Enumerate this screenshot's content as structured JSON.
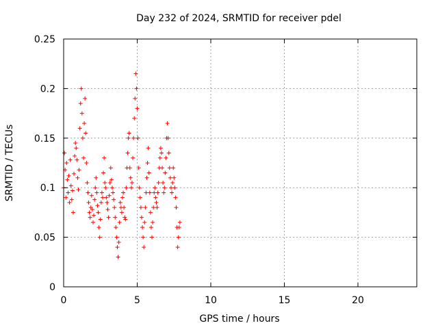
{
  "chart_data": {
    "type": "scatter",
    "title": "Day 232 of 2024, SRMTID for receiver pdel",
    "xlabel": "GPS time / hours",
    "ylabel": "SRMTID / TECUs",
    "xlim": [
      0,
      24
    ],
    "ylim": [
      0,
      0.25
    ],
    "xticks": [
      0,
      5,
      10,
      15,
      20
    ],
    "xtick_labels": [
      "0",
      "5",
      "10",
      "15",
      "20"
    ],
    "yticks": [
      0,
      0.05,
      0.1,
      0.15,
      0.2,
      0.25
    ],
    "ytick_labels": [
      "0",
      "0.05",
      "0.1",
      "0.15",
      "0.2",
      "0.25"
    ],
    "grid": true,
    "legend": "none",
    "marker": "plus",
    "color": "#ff0000",
    "series": [
      {
        "x": [
          0.0,
          0.05,
          0.1,
          0.15,
          0.2,
          0.25,
          0.3,
          0.35,
          0.4,
          0.45,
          0.5,
          0.55,
          0.6,
          0.65,
          0.7,
          0.75,
          0.8,
          0.85,
          0.9,
          0.95,
          1.0,
          1.05,
          1.1,
          1.15,
          1.2,
          1.25,
          1.3,
          1.35,
          1.4,
          1.45,
          1.5,
          1.55,
          1.6,
          1.65,
          1.7,
          1.75,
          1.8,
          1.85,
          1.9,
          1.95,
          2.0,
          2.05,
          2.1,
          2.15,
          2.2,
          2.25,
          2.3,
          2.35,
          2.4,
          2.45,
          2.5,
          2.55,
          2.6,
          2.65,
          2.7,
          2.75,
          2.8,
          2.85,
          2.9,
          2.95,
          3.0,
          3.05,
          3.1,
          3.15,
          3.2,
          3.25,
          3.3,
          3.35,
          3.4,
          3.45,
          3.5,
          3.55,
          3.6,
          3.65,
          3.7,
          3.75,
          3.8,
          3.85,
          3.9,
          3.95,
          4.0,
          4.05,
          4.1,
          4.15,
          4.2,
          4.25,
          4.3,
          4.35,
          4.4,
          4.45,
          4.5,
          4.55,
          4.6,
          4.65,
          4.7,
          4.75,
          4.8,
          4.85,
          4.9,
          4.95,
          5.0,
          5.05,
          5.1,
          5.15,
          5.2,
          5.25,
          5.3,
          5.35,
          5.4,
          5.45,
          5.5,
          5.55,
          5.6,
          5.65,
          5.7,
          5.75,
          5.8,
          5.85,
          5.9,
          5.95,
          6.0,
          6.05,
          6.1,
          6.15,
          6.2,
          6.25,
          6.3,
          6.35,
          6.4,
          6.45,
          6.5,
          6.55,
          6.6,
          6.65,
          6.7,
          6.75,
          6.8,
          6.85,
          6.9,
          6.95,
          7.0,
          7.05,
          7.1,
          7.15,
          7.2,
          7.25,
          7.3,
          7.35,
          7.4,
          7.45,
          7.5,
          7.55,
          7.6,
          7.65,
          7.7,
          7.75,
          7.8,
          7.85,
          7.9
        ],
        "y": [
          0.1,
          0.135,
          0.118,
          0.09,
          0.125,
          0.108,
          0.095,
          0.112,
          0.085,
          0.128,
          0.102,
          0.088,
          0.097,
          0.075,
          0.114,
          0.132,
          0.145,
          0.14,
          0.128,
          0.11,
          0.098,
          0.118,
          0.16,
          0.185,
          0.2,
          0.175,
          0.15,
          0.13,
          0.165,
          0.19,
          0.155,
          0.125,
          0.105,
          0.095,
          0.085,
          0.075,
          0.07,
          0.08,
          0.092,
          0.078,
          0.065,
          0.072,
          0.088,
          0.1,
          0.11,
          0.095,
          0.082,
          0.075,
          0.06,
          0.05,
          0.068,
          0.085,
          0.095,
          0.09,
          0.115,
          0.13,
          0.105,
          0.1,
          0.09,
          0.085,
          0.078,
          0.07,
          0.092,
          0.105,
          0.12,
          0.108,
          0.1,
          0.095,
          0.088,
          0.08,
          0.07,
          0.06,
          0.05,
          0.04,
          0.03,
          0.045,
          0.065,
          0.085,
          0.08,
          0.075,
          0.09,
          0.095,
          0.08,
          0.07,
          0.068,
          0.1,
          0.12,
          0.135,
          0.15,
          0.155,
          0.12,
          0.11,
          0.1,
          0.105,
          0.13,
          0.15,
          0.17,
          0.19,
          0.215,
          0.2,
          0.18,
          0.15,
          0.12,
          0.1,
          0.09,
          0.08,
          0.07,
          0.06,
          0.05,
          0.04,
          0.065,
          0.08,
          0.095,
          0.11,
          0.125,
          0.14,
          0.115,
          0.095,
          0.075,
          0.06,
          0.05,
          0.065,
          0.08,
          0.095,
          0.1,
          0.09,
          0.085,
          0.08,
          0.095,
          0.105,
          0.12,
          0.13,
          0.14,
          0.135,
          0.12,
          0.105,
          0.095,
          0.1,
          0.115,
          0.13,
          0.15,
          0.165,
          0.15,
          0.135,
          0.12,
          0.11,
          0.1,
          0.095,
          0.105,
          0.12,
          0.11,
          0.1,
          0.09,
          0.08,
          0.06,
          0.04,
          0.05,
          0.06,
          0.065
        ]
      }
    ]
  }
}
